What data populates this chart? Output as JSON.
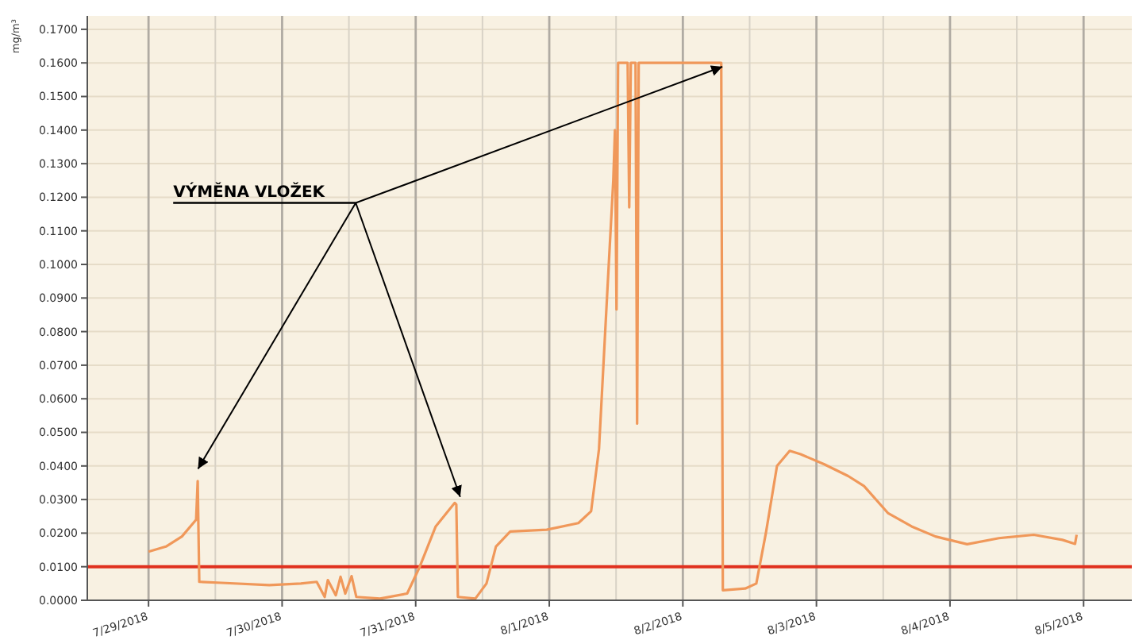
{
  "chart_data": {
    "type": "line",
    "ylabel": "mg/m³",
    "grid": true,
    "line_style": "solid",
    "annotations": [
      "VÝMĚNA VLOŽEK"
    ],
    "ref_lines": [
      {
        "axis": "y",
        "value": 0.01,
        "color": "#e0301e"
      }
    ],
    "xlim": [
      "2018-07-28T13:00",
      "2018-08-05T08:40"
    ],
    "xticks": [
      {
        "value": "2018-07-29",
        "label": "7/29/2018"
      },
      {
        "value": "2018-07-30",
        "label": "7/30/2018"
      },
      {
        "value": "2018-07-31",
        "label": "7/31/2018"
      },
      {
        "value": "2018-08-01",
        "label": "8/1/2018"
      },
      {
        "value": "2018-08-02",
        "label": "8/2/2018"
      },
      {
        "value": "2018-08-03",
        "label": "8/3/2018"
      },
      {
        "value": "2018-08-04",
        "label": "8/4/2018"
      },
      {
        "value": "2018-08-05",
        "label": "8/5/2018"
      }
    ],
    "ylim": [
      0,
      0.174
    ],
    "yticks": [
      {
        "value": 0,
        "label": "0.0000"
      },
      {
        "value": 0.01,
        "label": "0.0100"
      },
      {
        "value": 0.02,
        "label": "0.0200"
      },
      {
        "value": 0.03,
        "label": "0.0300"
      },
      {
        "value": 0.04,
        "label": "0.0400"
      },
      {
        "value": 0.05,
        "label": "0.0500"
      },
      {
        "value": 0.06,
        "label": "0.0600"
      },
      {
        "value": 0.07,
        "label": "0.0700"
      },
      {
        "value": 0.08,
        "label": "0.0800"
      },
      {
        "value": 0.09,
        "label": "0.0900"
      },
      {
        "value": 0.1,
        "label": "0.1000"
      },
      {
        "value": 0.11,
        "label": "0.1100"
      },
      {
        "value": 0.12,
        "label": "0.1200"
      },
      {
        "value": 0.13,
        "label": "0.1300"
      },
      {
        "value": 0.14,
        "label": "0.1400"
      },
      {
        "value": 0.15,
        "label": "0.1500"
      },
      {
        "value": 0.16,
        "label": "0.1600"
      },
      {
        "value": 0.17,
        "label": "0.1700"
      }
    ],
    "series": [
      {
        "color": "#f0985a",
        "x": [
          "2018-07-29T00:00",
          "2018-07-29T03:08",
          "2018-07-29T06:00",
          "2018-07-29T08:33",
          "2018-07-29T08:50",
          "2018-07-29T09:07",
          "2018-07-29T13:06",
          "2018-07-29T21:42",
          "2018-07-30T03:22",
          "2018-07-30T06:13",
          "2018-07-30T07:39",
          "2018-07-30T08:13",
          "2018-07-30T09:39",
          "2018-07-30T10:30",
          "2018-07-30T11:21",
          "2018-07-30T12:29",
          "2018-07-30T13:20",
          "2018-07-30T17:36",
          "2018-07-30T22:28",
          "2018-07-31T00:44",
          "2018-07-31T03:36",
          "2018-07-31T07:01",
          "2018-07-31T07:18",
          "2018-07-31T07:35",
          "2018-07-31T10:43",
          "2018-07-31T12:43",
          "2018-07-31T14:25",
          "2018-07-31T16:59",
          "2018-07-31T23:32",
          "2018-08-01T05:14",
          "2018-08-01T07:31",
          "2018-08-01T08:56",
          "2018-08-01T10:22",
          "2018-08-01T11:30",
          "2018-08-01T11:48",
          "2018-08-01T12:05",
          "2018-08-01T12:22",
          "2018-08-01T14:05",
          "2018-08-01T14:22",
          "2018-08-01T14:39",
          "2018-08-01T15:30",
          "2018-08-01T15:47",
          "2018-08-01T16:04",
          "2018-08-02T06:54",
          "2018-08-02T07:11",
          "2018-08-02T11:12",
          "2018-08-02T13:12",
          "2018-08-02T14:55",
          "2018-08-02T16:55",
          "2018-08-02T19:12",
          "2018-08-02T21:09",
          "2018-08-03T01:25",
          "2018-08-03T05:42",
          "2018-08-03T08:33",
          "2018-08-03T12:50",
          "2018-08-03T17:06",
          "2018-08-03T21:23",
          "2018-08-04T03:05",
          "2018-08-04T08:47",
          "2018-08-04T15:03",
          "2018-08-04T20:11",
          "2018-08-04T22:28",
          "2018-08-04T22:45"
        ],
        "values": [
          0.0145,
          0.016,
          0.019,
          0.024,
          0.0355,
          0.0055,
          0.0052,
          0.0045,
          0.005,
          0.0055,
          0.001,
          0.006,
          0.0015,
          0.007,
          0.002,
          0.0072,
          0.001,
          0.0005,
          0.002,
          0.01,
          0.022,
          0.029,
          0.0285,
          0.001,
          0.0005,
          0.005,
          0.016,
          0.0205,
          0.021,
          0.023,
          0.0265,
          0.045,
          0.09,
          0.125,
          0.14,
          0.0866,
          0.16,
          0.16,
          0.117,
          0.16,
          0.16,
          0.0526,
          0.16,
          0.16,
          0.003,
          0.0035,
          0.005,
          0.02,
          0.04,
          0.0445,
          0.0435,
          0.0405,
          0.037,
          0.034,
          0.026,
          0.022,
          0.019,
          0.0167,
          0.0185,
          0.0195,
          0.018,
          0.0168,
          0.0195
        ]
      }
    ]
  }
}
